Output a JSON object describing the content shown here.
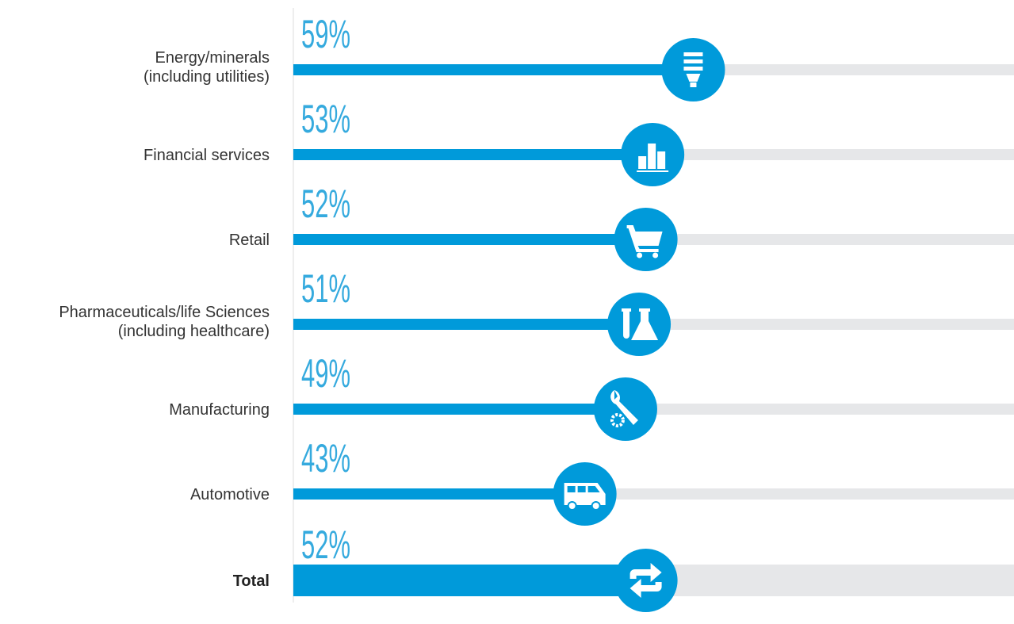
{
  "chart_data": {
    "type": "bar",
    "orientation": "horizontal",
    "categories": [
      "Energy/minerals\n(including utilities)",
      "Financial services",
      "Retail",
      "Pharmaceuticals/life Sciences\n(including healthcare)",
      "Manufacturing",
      "Automotive",
      "Total"
    ],
    "values": [
      59,
      53,
      52,
      51,
      49,
      43,
      52
    ],
    "value_labels": [
      "59%",
      "53%",
      "52%",
      "51%",
      "49%",
      "43%",
      "52%"
    ],
    "color": "#009ada",
    "track_color": "#e6e7e9"
  }
}
